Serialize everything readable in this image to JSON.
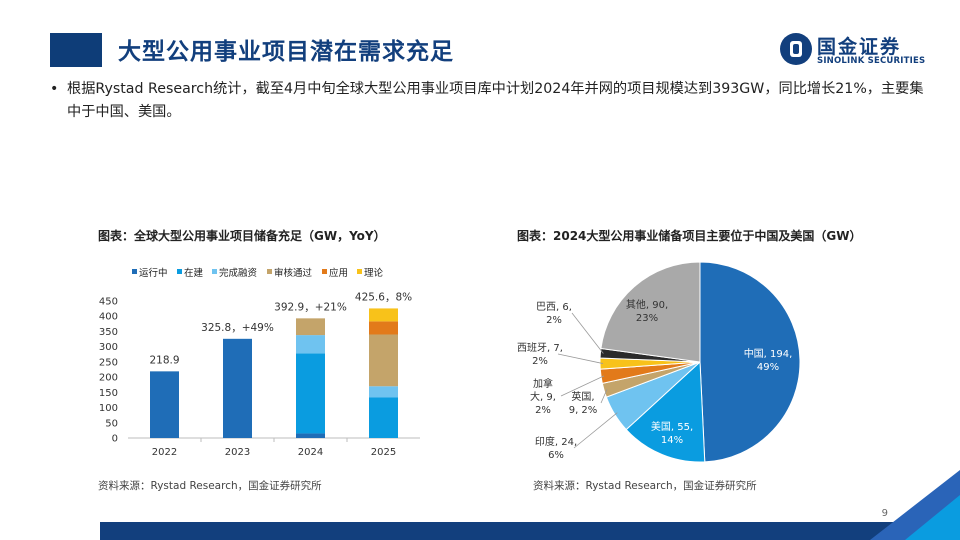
{
  "header": {
    "title": "大型公用事业项目潜在需求充足",
    "logo_cn": "国金证券",
    "logo_en": "SINOLINK SECURITIES"
  },
  "bullet": {
    "dot": "•",
    "text": "根据Rystad Research统计，截至4月中旬全球大型公用事业项目库中计划2024年并网的项目规模达到393GW，同比增长21%，主要集中于中国、美国。"
  },
  "left_chart": {
    "title": "图表：全球大型公用事业项目储备充足（GW，YoY）",
    "source": "资料来源：Rystad Research，国金证券研究所"
  },
  "right_chart": {
    "title": "图表：2024大型公用事业储备项目主要位于中国及美国（GW）",
    "source": "资料来源：Rystad Research，国金证券研究所"
  },
  "page_number": "9",
  "colors": {
    "dark_blue": "#1f6db7",
    "blue": "#0a9ce0",
    "light_blue": "#6fc3f0",
    "khaki": "#c4a46a",
    "orange": "#e27a1a",
    "yellow": "#f8c21a",
    "grey": "#a9a9a9",
    "black": "#2b2b2b",
    "brand": "#123f7d"
  },
  "chart_data": [
    {
      "type": "bar",
      "stacked": true,
      "categories": [
        "2022",
        "2023",
        "2024",
        "2025"
      ],
      "ylim": [
        0,
        450
      ],
      "yticks": [
        "0",
        "50",
        "100",
        "150",
        "200",
        "250",
        "300",
        "350",
        "400",
        "450"
      ],
      "legend_position": "top-left",
      "series": [
        {
          "name": "运行中",
          "color": "#1f6db7",
          "values": [
            218.9,
            325.8,
            15,
            0
          ]
        },
        {
          "name": "在建",
          "color": "#0a9ce0",
          "values": [
            0,
            0,
            263,
            133
          ]
        },
        {
          "name": "完成融资",
          "color": "#6fc3f0",
          "values": [
            0,
            0,
            60,
            37
          ]
        },
        {
          "name": "审核通过",
          "color": "#c4a46a",
          "values": [
            0,
            0,
            55,
            170
          ]
        },
        {
          "name": "应用",
          "color": "#e27a1a",
          "values": [
            0,
            0,
            0,
            43
          ]
        },
        {
          "name": "理论",
          "color": "#f8c21a",
          "values": [
            0,
            0,
            0,
            42.6
          ]
        }
      ],
      "totals": [
        218.9,
        325.8,
        392.9,
        425.6
      ],
      "data_labels": [
        "218.9",
        "325.8，+49%",
        "392.9，+21%",
        "425.6，8%"
      ]
    },
    {
      "type": "pie",
      "categories": [
        "中国",
        "美国",
        "印度",
        "英国",
        "加拿大",
        "西班牙",
        "巴西",
        "其他"
      ],
      "values": [
        194,
        55,
        24,
        9,
        9,
        7,
        6,
        90
      ],
      "percents": [
        "49%",
        "14%",
        "6%",
        "2%",
        "2%",
        "2%",
        "2%",
        "23%"
      ],
      "colors": [
        "#1f6db7",
        "#0a9ce0",
        "#6fc3f0",
        "#c4a46a",
        "#e27a1a",
        "#f8c21a",
        "#2b2b2b",
        "#a9a9a9"
      ],
      "labels": [
        [
          "中国, 194,",
          "49%"
        ],
        [
          "美国, 55,",
          "14%"
        ],
        [
          "印度, 24,",
          "6%"
        ],
        [
          "英国,",
          "9, 2%"
        ],
        [
          "加拿",
          "大, 9,",
          "2%"
        ],
        [
          "西班牙, 7,",
          "2%"
        ],
        [
          "巴西, 6,",
          "2%"
        ],
        [
          "其他, 90,",
          "23%"
        ]
      ]
    }
  ]
}
